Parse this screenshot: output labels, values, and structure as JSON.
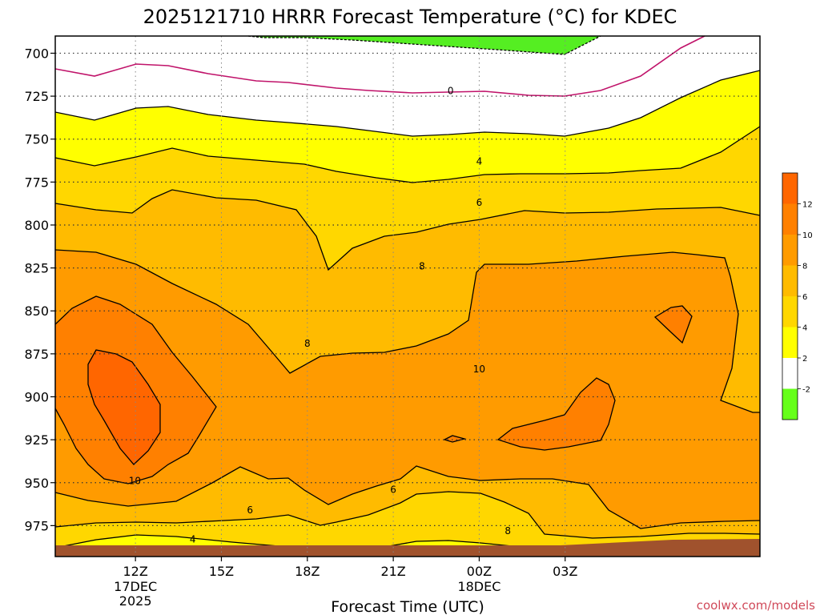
{
  "chart_data": {
    "type": "area",
    "title": "2025121710 HRRR Forecast Temperature (°C) for KDEC",
    "xlabel": "Forecast Time (UTC)",
    "ylabel": "",
    "y_axis": {
      "units": "hPa",
      "reversed": true,
      "range": [
        690,
        993
      ],
      "ticks": [
        700,
        725,
        750,
        775,
        800,
        825,
        850,
        875,
        900,
        925,
        950,
        975
      ]
    },
    "x_axis": {
      "range_hours": [
        9.2,
        33.8
      ],
      "ticks": [
        {
          "hour": 12,
          "label": "12Z",
          "sub1": "17DEC",
          "sub2": "2025"
        },
        {
          "hour": 15,
          "label": "15Z",
          "sub1": "",
          "sub2": ""
        },
        {
          "hour": 18,
          "label": "18Z",
          "sub1": "",
          "sub2": ""
        },
        {
          "hour": 21,
          "label": "21Z",
          "sub1": "",
          "sub2": ""
        },
        {
          "hour": 24,
          "label": "00Z",
          "sub1": "18DEC",
          "sub2": ""
        },
        {
          "hour": 27,
          "label": "03Z",
          "sub1": "",
          "sub2": ""
        }
      ]
    },
    "grid": true,
    "colorbar": {
      "placement": "right",
      "levels": [
        -2,
        2,
        4,
        6,
        8,
        10,
        12
      ],
      "labels": [
        "-2",
        "2",
        "4",
        "6",
        "8",
        "10",
        "12"
      ],
      "colors": [
        "#66ff1a",
        "#ffffff",
        "#ffff00",
        "#ffd700",
        "#ffbb00",
        "#ff9b00",
        "#ff8000",
        "#ff6600"
      ]
    },
    "fill_colors": {
      "below_minus2": "#55ee22",
      "t_minus2_2": "#ffffff",
      "t_2_4": "#ffff00",
      "t_4_6": "#ffd700",
      "t_6_8": "#ffbb00",
      "t_8_10": "#ff9b00",
      "t_10_12": "#ff8000",
      "t_above_12": "#ff6600",
      "ground": "#a0522d",
      "zero_line": "#c0136a"
    },
    "contour_labels": [
      {
        "text": "0",
        "hour": 23.0,
        "p": 722
      },
      {
        "text": "4",
        "hour": 24.0,
        "p": 763
      },
      {
        "text": "6",
        "hour": 24.0,
        "p": 787
      },
      {
        "text": "8",
        "hour": 22.0,
        "p": 824
      },
      {
        "text": "8",
        "hour": 18.0,
        "p": 869
      },
      {
        "text": "10",
        "hour": 24.0,
        "p": 884
      },
      {
        "text": "10",
        "hour": 11.98,
        "p": 949
      },
      {
        "text": "6",
        "hour": 16.0,
        "p": 966
      },
      {
        "text": "6",
        "hour": 21.0,
        "p": 954
      },
      {
        "text": "4",
        "hour": 14.0,
        "p": 983
      },
      {
        "text": "8",
        "hour": 25.0,
        "p": 978
      }
    ]
  },
  "credit": "coolwx.com/models"
}
